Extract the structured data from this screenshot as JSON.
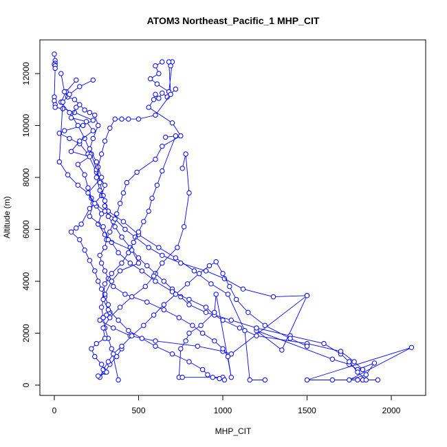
{
  "chart_data": {
    "type": "line",
    "title": "ATOM3 Northeast_Pacific_1 MHP_CIT",
    "xlabel": "MHP_CIT",
    "ylabel": "Altitude (m)",
    "xlim": [
      0,
      2200
    ],
    "ylim": [
      0,
      13000
    ],
    "xticks": [
      0,
      500,
      1000,
      1500,
      2000
    ],
    "xtick_labels": [
      "0",
      "500",
      "1000",
      "1500",
      "2000"
    ],
    "yticks": [
      0,
      2000,
      4000,
      6000,
      8000,
      10000,
      12000
    ],
    "ytick_labels": [
      "0",
      "2000",
      "4000",
      "6000",
      "8000",
      "10000",
      "12000"
    ],
    "grid": false,
    "series_color": "#0000ff",
    "marker": "open-circle",
    "series": [
      {
        "x": [
          0,
          5,
          5,
          0,
          5,
          5,
          0,
          0,
          5,
          5,
          50,
          120,
          230,
          170,
          60,
          30,
          90,
          150,
          200,
          250,
          300,
          280,
          210,
          160,
          130,
          100,
          150,
          180,
          210,
          240,
          260,
          280,
          300,
          320,
          330,
          310,
          290,
          270,
          350,
          450,
          600,
          850,
          1000,
          1050,
          1500,
          1350,
          1200,
          1650,
          1750,
          1800,
          1900,
          1850,
          1750,
          2120,
          1500,
          1650,
          1800,
          1830
        ],
        "y": [
          12750,
          12500,
          12400,
          12350,
          12300,
          12200,
          11100,
          10950,
          10800,
          10700,
          10650,
          10500,
          10200,
          10000,
          9800,
          9700,
          9500,
          9300,
          8900,
          8200,
          7700,
          7300,
          6800,
          6200,
          6050,
          5900,
          5600,
          5200,
          4800,
          4400,
          4000,
          3700,
          3400,
          3100,
          2800,
          2700,
          2600,
          2500,
          2200,
          1900,
          1700,
          1500,
          1300,
          1200,
          3450,
          1350,
          2100,
          1000,
          800,
          600,
          850,
          400,
          200,
          1450,
          200,
          200,
          200,
          200
        ]
      },
      {
        "x": [
          130,
          70,
          40,
          90,
          140,
          180,
          220,
          250,
          270,
          290,
          300,
          320,
          360,
          400,
          450,
          500,
          550,
          600,
          650,
          700,
          750,
          800,
          900,
          1050,
          1200,
          1400,
          1600,
          1700,
          1750,
          1800,
          1850,
          1920
        ],
        "y": [
          11750,
          11300,
          10900,
          10500,
          10000,
          9500,
          8900,
          8300,
          7800,
          7300,
          6900,
          6500,
          6100,
          5700,
          5300,
          4900,
          4600,
          4300,
          4000,
          3700,
          3400,
          3100,
          2800,
          2500,
          2200,
          1900,
          1600,
          1200,
          900,
          500,
          200,
          200
        ]
      },
      {
        "x": [
          130,
          100,
          190,
          230,
          150,
          100,
          210,
          140,
          180,
          200,
          220,
          250,
          280,
          260,
          300,
          340,
          380,
          450,
          520,
          600,
          700,
          800,
          900,
          950,
          1000,
          1100,
          1200,
          1500,
          1700,
          1780,
          1830
        ],
        "y": [
          10700,
          10300,
          10150,
          9800,
          9400,
          9000,
          8800,
          8500,
          8100,
          7600,
          7200,
          6900,
          6600,
          6200,
          5800,
          5500,
          5100,
          4700,
          4400,
          4000,
          3600,
          3300,
          3000,
          2700,
          2500,
          2200,
          1900,
          1600,
          1300,
          900,
          600
        ]
      },
      {
        "x": [
          720,
          670,
          640,
          620,
          600,
          590,
          560,
          700,
          750,
          640,
          600,
          490,
          430,
          410,
          390,
          370,
          350,
          330,
          310,
          300,
          270,
          280,
          300,
          320,
          350,
          420,
          550,
          650,
          740,
          820,
          880,
          950,
          1000,
          1030,
          1050,
          960,
          950,
          870,
          800,
          780,
          750,
          740,
          760,
          1000
        ],
        "y": [
          11400,
          11100,
          11250,
          11050,
          11200,
          11000,
          10700,
          10100,
          9600,
          9200,
          8700,
          8200,
          7800,
          7400,
          7000,
          6600,
          6300,
          5900,
          5600,
          5300,
          5000,
          4700,
          4400,
          4100,
          3800,
          3500,
          3200,
          2900,
          2600,
          2300,
          2000,
          1700,
          1400,
          1100,
          300,
          3500,
          2800,
          2300,
          2000,
          1700,
          1400,
          300,
          300,
          300
        ]
      },
      {
        "x": [
          640,
          600,
          620,
          570,
          610,
          680,
          700,
          690,
          680,
          690,
          600,
          500,
          440,
          400,
          360,
          330,
          300,
          280,
          260,
          250,
          270,
          300,
          320,
          410,
          500,
          620,
          720,
          830,
          930,
          1030,
          1130,
          1160,
          1250
        ],
        "y": [
          12450,
          12300,
          12000,
          11800,
          11600,
          11300,
          12450,
          12300,
          12450,
          11200,
          10400,
          10250,
          10250,
          10250,
          10250,
          9900,
          9400,
          8900,
          8400,
          8000,
          7500,
          7100,
          6700,
          6300,
          5800,
          5300,
          4900,
          4400,
          3900,
          3500,
          2100,
          200,
          200
        ]
      },
      {
        "x": [
          40,
          60,
          80,
          120,
          150,
          180,
          210,
          240,
          260,
          230,
          210,
          250,
          280,
          200,
          230,
          210,
          290,
          320,
          460,
          500,
          390,
          340,
          300,
          280,
          290,
          300,
          320,
          340,
          380
        ],
        "y": [
          12000,
          11300,
          11100,
          11000,
          10800,
          10600,
          10500,
          10400,
          10000,
          9500,
          9100,
          8600,
          8000,
          7400,
          7000,
          6500,
          6100,
          5600,
          5200,
          4700,
          4400,
          4000,
          3500,
          3000,
          2600,
          2200,
          1800,
          1400,
          200
        ]
      },
      {
        "x": [
          230,
          150,
          90,
          50,
          30,
          80,
          140,
          200,
          240,
          300,
          360,
          420,
          480,
          560,
          640,
          750,
          900,
          1010,
          1120,
          1300,
          1500
        ],
        "y": [
          11750,
          11500,
          11200,
          10900,
          8600,
          8100,
          7700,
          7400,
          7000,
          6700,
          6400,
          6000,
          5700,
          5300,
          5000,
          4700,
          4400,
          4100,
          3700,
          3400,
          3450
        ]
      },
      {
        "x": [
          400,
          370,
          330,
          300,
          270,
          290,
          320,
          350,
          400,
          460,
          530,
          590,
          650,
          720,
          790,
          860,
          920,
          960,
          1000,
          1040,
          1080,
          1150,
          1250,
          1400,
          1500
        ],
        "y": [
          1400,
          1100,
          800,
          500,
          300,
          600,
          900,
          1200,
          1500,
          1900,
          2300,
          2700,
          3100,
          3500,
          3900,
          4300,
          4600,
          4750,
          4300,
          3800,
          3300,
          2800,
          2300,
          1800,
          1500
        ]
      },
      {
        "x": [
          760,
          780,
          800,
          770,
          730,
          640,
          590,
          540,
          460,
          390,
          330,
          290,
          300,
          250,
          220,
          240,
          280,
          310,
          260
        ],
        "y": [
          8350,
          8900,
          7400,
          6100,
          5300,
          4700,
          4200,
          3800,
          3400,
          3000,
          2600,
          2200,
          1800,
          1600,
          1400,
          1100,
          800,
          500,
          350
        ]
      },
      {
        "x": [
          660,
          720,
          640,
          610,
          580,
          560,
          530,
          500,
          470,
          440,
          400,
          340,
          300,
          290,
          320,
          380,
          440,
          520,
          600,
          700,
          800,
          880,
          910,
          940,
          980,
          1010
        ],
        "y": [
          9550,
          9600,
          8250,
          7700,
          7200,
          6700,
          6300,
          5900,
          5500,
          5100,
          4700,
          4300,
          3900,
          3300,
          2900,
          2500,
          2100,
          1800,
          1500,
          1200,
          900,
          600,
          400,
          300,
          250,
          200
        ]
      }
    ]
  }
}
